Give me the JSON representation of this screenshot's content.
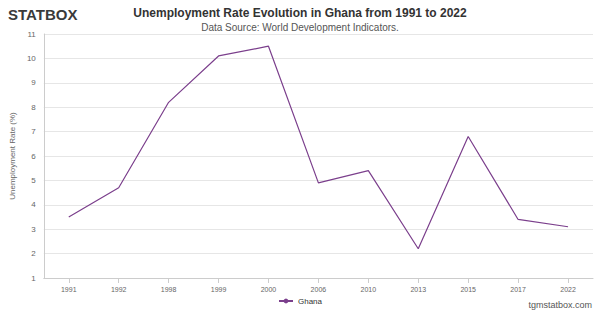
{
  "chart_data": {
    "type": "line",
    "title": "Unemployment Rate Evolution in Ghana from 1991 to 2022",
    "subtitle": "Data Source: World Development Indicators.",
    "y_label": "Unemployment Rate (%)",
    "annotations": [
      "STATBOX",
      "tgmstatbox.com"
    ],
    "categories": [
      "1991",
      "1992",
      "1998",
      "1999",
      "2000",
      "2006",
      "2010",
      "2013",
      "2015",
      "2017",
      "2022"
    ],
    "series": [
      {
        "name": "Ghana",
        "color": "#7b3f8c",
        "values": [
          3.5,
          4.7,
          8.2,
          10.1,
          10.5,
          4.9,
          5.4,
          2.2,
          6.8,
          3.4,
          3.1
        ]
      }
    ],
    "ylim": [
      1,
      11
    ],
    "yticks": [
      1,
      2,
      3,
      4,
      5,
      6,
      7,
      8,
      9,
      10,
      11
    ],
    "grid": true,
    "legend": "bottom"
  }
}
